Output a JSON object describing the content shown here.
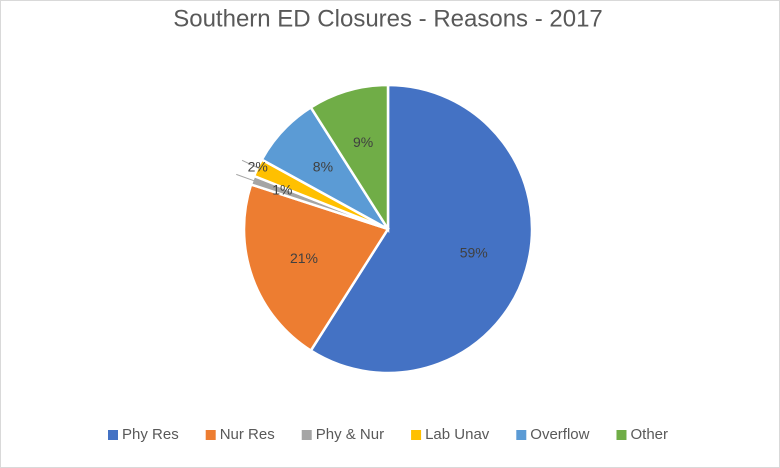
{
  "chart_data": {
    "type": "pie",
    "title": "Southern ED Closures - Reasons - 2017",
    "categories": [
      "Phy Res",
      "Nur Res",
      "Phy & Nur",
      "Lab Unav",
      "Overflow",
      "Other"
    ],
    "values": [
      59,
      21,
      1,
      2,
      8,
      9
    ],
    "value_labels": [
      "59%",
      "21%",
      "1%",
      "2%",
      "8%",
      "9%"
    ],
    "colors": [
      "#4472c4",
      "#ed7d31",
      "#a5a5a5",
      "#ffc000",
      "#5b9bd5",
      "#70ad47"
    ],
    "legend": "bottom"
  }
}
